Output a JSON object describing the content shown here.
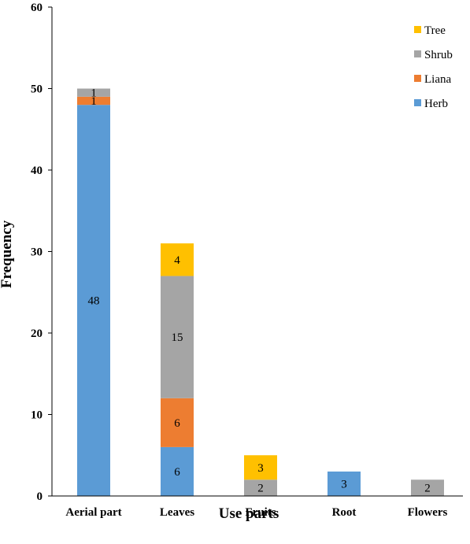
{
  "chart_data": {
    "type": "bar",
    "stacked": true,
    "title": "",
    "xlabel": "Use parts",
    "ylabel": "Frequency",
    "ylim": [
      0,
      60
    ],
    "yticks": [
      0,
      10,
      20,
      30,
      40,
      50,
      60
    ],
    "categories": [
      "Aerial part",
      "Leaves",
      "Fruits",
      "Root",
      "Flowers"
    ],
    "series": [
      {
        "name": "Herb",
        "color": "#5B9BD5",
        "values": [
          48,
          6,
          0,
          3,
          0
        ]
      },
      {
        "name": "Liana",
        "color": "#ED7D31",
        "values": [
          1,
          6,
          0,
          0,
          0
        ]
      },
      {
        "name": "Shrub",
        "color": "#A5A5A5",
        "values": [
          1,
          15,
          2,
          0,
          2
        ]
      },
      {
        "name": "Tree",
        "color": "#FFC000",
        "values": [
          0,
          4,
          3,
          0,
          0
        ]
      }
    ],
    "legend_order": [
      "Tree",
      "Shrub",
      "Liana",
      "Herb"
    ],
    "legend_position": "top-right",
    "grid": false
  }
}
